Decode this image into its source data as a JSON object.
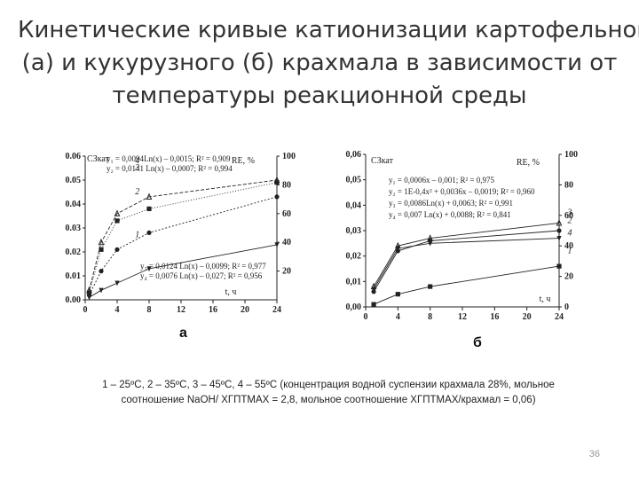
{
  "slide": {
    "title_lines": [
      "Кинетические кривые катионизации картофельного",
      "(а) и кукурузного (б) крахмала в зависимости от",
      "температуры реакционной среды"
    ],
    "caption_lines": [
      "1 – 25ºС, 2 – 35ºС, 3 – 45ºС, 4 – 55ºС (концентрация водной суспензии крахмала 28%, мольное",
      "соотношение NaOH/ ХГПТМАХ = 2,8, мольное соотношение ХГПТМАХ/крахмал = 0,06)"
    ],
    "page_number": "36",
    "colors": {
      "ink": "#222222",
      "title": "#333333",
      "page_number": "#999999"
    }
  },
  "chart_data": [
    {
      "panel_label": "а",
      "type": "line",
      "ylabel": "СЗкат",
      "y2label": "RE, %",
      "xlabel": "t, ч",
      "xlim": [
        0,
        24
      ],
      "ylim": [
        0,
        0.06
      ],
      "y2lim": [
        0,
        100
      ],
      "xticks": [
        "0",
        "4",
        "8",
        "12",
        "16",
        "20",
        "24"
      ],
      "yticks": [
        "0.00",
        "0.01",
        "0.02",
        "0.03",
        "0.04",
        "0.05",
        "0.06"
      ],
      "y2ticks": [
        "20",
        "40",
        "60",
        "80",
        "100"
      ],
      "equations": [
        "y₁ = 0,0094Ln(x) – 0,0015; R² = 0,909",
        "y₂ = 0,0141 Ln(x) – 0,0007; R² = 0,994",
        "y₃ = 0,0124 Ln(x) – 0,0099; R² = 0,977",
        "y₄ = 0,0076 Ln(x) – 0,027; R² = 0,956"
      ],
      "series": [
        {
          "name": "1",
          "marker": "triangle-down",
          "x": [
            0.5,
            2,
            4,
            8,
            24
          ],
          "y": [
            0.001,
            0.004,
            0.007,
            0.013,
            0.023
          ]
        },
        {
          "name": "2",
          "marker": "circle",
          "x": [
            0.5,
            2,
            4,
            8,
            24
          ],
          "y": [
            0.002,
            0.012,
            0.021,
            0.028,
            0.043
          ]
        },
        {
          "name": "3",
          "marker": "square",
          "x": [
            0.5,
            2,
            4,
            8,
            24
          ],
          "y": [
            0.003,
            0.021,
            0.033,
            0.038,
            0.049
          ]
        },
        {
          "name": "4",
          "marker": "triangle",
          "x": [
            0.5,
            2,
            4,
            8,
            24
          ],
          "y": [
            0.004,
            0.024,
            0.036,
            0.043,
            0.05
          ]
        }
      ]
    },
    {
      "panel_label": "б",
      "type": "line",
      "ylabel": "СЗкат",
      "y2label": "RE, %",
      "xlabel": "t, ч",
      "xlim": [
        0,
        24
      ],
      "ylim": [
        0,
        0.06
      ],
      "y2lim": [
        0,
        100
      ],
      "xticks": [
        "0",
        "4",
        "8",
        "12",
        "16",
        "20",
        "24"
      ],
      "yticks": [
        "0,00",
        "0,01",
        "0,02",
        "0,03",
        "0,04",
        "0,05",
        "0,06"
      ],
      "y2ticks": [
        "0",
        "20",
        "40",
        "60",
        "80",
        "100"
      ],
      "equations": [
        "y₁ = 0,0006x – 0,001; R² = 0,975",
        "y₂ = 1E-0,4x² + 0,0036x – 0,0019; R² = 0,960",
        "y₃ = 0,0086Ln(x) + 0,0063; R² = 0,991",
        "y₄ = 0,007 Ln(x) + 0,0088; R² = 0,841"
      ],
      "series": [
        {
          "name": "1",
          "marker": "square",
          "x": [
            1,
            4,
            8,
            24
          ],
          "y": [
            0.001,
            0.005,
            0.008,
            0.016
          ]
        },
        {
          "name": "2",
          "marker": "circle",
          "x": [
            1,
            4,
            8,
            24
          ],
          "y": [
            0.006,
            0.022,
            0.026,
            0.03
          ]
        },
        {
          "name": "3",
          "marker": "triangle",
          "x": [
            1,
            4,
            8,
            24
          ],
          "y": [
            0.008,
            0.024,
            0.027,
            0.033
          ]
        },
        {
          "name": "4",
          "marker": "triangle-down",
          "x": [
            1,
            4,
            8,
            24
          ],
          "y": [
            0.007,
            0.023,
            0.025,
            0.027
          ]
        }
      ]
    }
  ]
}
